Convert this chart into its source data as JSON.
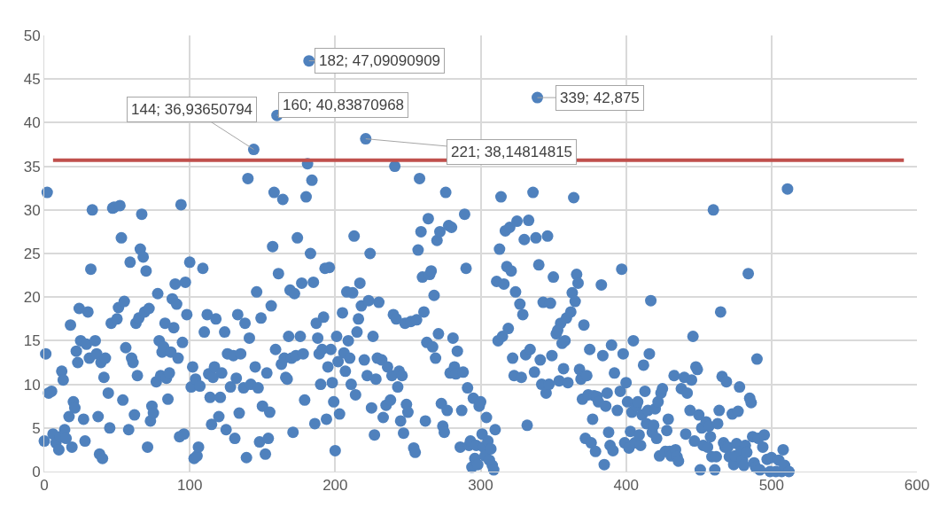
{
  "chart_data": {
    "type": "scatter",
    "x": [
      0,
      1,
      2,
      3,
      5,
      6,
      8,
      10,
      11,
      12,
      13,
      14,
      15,
      17,
      18,
      19,
      20,
      21,
      22,
      23,
      24,
      25,
      27,
      28,
      29,
      30,
      31,
      32,
      33,
      35,
      36,
      37,
      38,
      39,
      40,
      41,
      42,
      44,
      45,
      46,
      47,
      48,
      50,
      51,
      52,
      53,
      54,
      55,
      56,
      58,
      59,
      60,
      61,
      62,
      63,
      64,
      65,
      66,
      67,
      68,
      69,
      70,
      71,
      72,
      73,
      74,
      75,
      77,
      78,
      79,
      80,
      81,
      82,
      83,
      84,
      85,
      86,
      87,
      88,
      89,
      90,
      91,
      92,
      93,
      94,
      95,
      96,
      97,
      98,
      100,
      101,
      102,
      103,
      104,
      105,
      106,
      107,
      109,
      110,
      112,
      113,
      114,
      115,
      116,
      117,
      118,
      120,
      121,
      122,
      124,
      125,
      126,
      128,
      130,
      131,
      132,
      133,
      134,
      135,
      137,
      138,
      139,
      140,
      141,
      142,
      144,
      145,
      146,
      147,
      148,
      149,
      150,
      152,
      153,
      154,
      155,
      156,
      157,
      158,
      159,
      160,
      161,
      163,
      164,
      165,
      166,
      167,
      168,
      169,
      170,
      171,
      172,
      173,
      174,
      176,
      177,
      178,
      179,
      180,
      181,
      182,
      183,
      184,
      185,
      186,
      187,
      188,
      189,
      190,
      191,
      192,
      193,
      194,
      195,
      196,
      197,
      198,
      199,
      200,
      201,
      202,
      203,
      205,
      206,
      207,
      208,
      209,
      210,
      211,
      212,
      213,
      214,
      215,
      216,
      217,
      218,
      220,
      221,
      222,
      223,
      224,
      225,
      226,
      227,
      228,
      229,
      230,
      232,
      233,
      235,
      236,
      238,
      239,
      240,
      241,
      242,
      243,
      244,
      245,
      246,
      247,
      248,
      249,
      250,
      252,
      254,
      255,
      256,
      257,
      258,
      259,
      260,
      261,
      262,
      263,
      264,
      265,
      266,
      267,
      268,
      269,
      270,
      271,
      272,
      273,
      274,
      275,
      276,
      277,
      278,
      279,
      280,
      281,
      282,
      283,
      284,
      286,
      287,
      288,
      289,
      290,
      291,
      292,
      293,
      294,
      295,
      296,
      297,
      298,
      299,
      300,
      301,
      302,
      303,
      304,
      305,
      306,
      307,
      308,
      309,
      310,
      311,
      312,
      313,
      314,
      315,
      316,
      317,
      318,
      319,
      320,
      321,
      322,
      323,
      324,
      325,
      327,
      328,
      329,
      330,
      331,
      332,
      333,
      334,
      336,
      337,
      338,
      339,
      340,
      341,
      342,
      343,
      345,
      346,
      347,
      348,
      349,
      350,
      352,
      353,
      354,
      355,
      356,
      357,
      358,
      359,
      360,
      362,
      363,
      364,
      365,
      366,
      367,
      368,
      369,
      370,
      371,
      372,
      373,
      374,
      375,
      376,
      377,
      378,
      379,
      380,
      381,
      383,
      384,
      385,
      386,
      387,
      388,
      389,
      390,
      391,
      392,
      394,
      396,
      397,
      398,
      399,
      400,
      401,
      402,
      403,
      404,
      405,
      406,
      407,
      408,
      409,
      410,
      411,
      412,
      413,
      414,
      415,
      416,
      417,
      418,
      419,
      420,
      421,
      422,
      423,
      424,
      425,
      427,
      428,
      429,
      430,
      431,
      433,
      434,
      435,
      436,
      438,
      440,
      441,
      442,
      444,
      445,
      446,
      447,
      448,
      449,
      450,
      451,
      452,
      453,
      455,
      456,
      457,
      458,
      459,
      460,
      461,
      462,
      463,
      464,
      465,
      466,
      467,
      468,
      469,
      470,
      471,
      473,
      474,
      475,
      476,
      477,
      478,
      479,
      480,
      481,
      482,
      483,
      484,
      485,
      486,
      487,
      488,
      489,
      490,
      491,
      492,
      494,
      495,
      497,
      499,
      500,
      503,
      505,
      507,
      508,
      509,
      511,
      512
    ],
    "values": [
      3.5,
      13.5,
      32,
      9,
      9.2,
      4.3,
      3.3,
      2.5,
      4,
      11.5,
      10.5,
      4.8,
      3.8,
      6.3,
      16.8,
      2.8,
      8,
      7.3,
      13.8,
      12.5,
      18.7,
      15,
      6,
      3.5,
      14.6,
      18.3,
      13,
      23.2,
      30,
      15,
      13.5,
      6.3,
      2,
      12.5,
      1.5,
      10.8,
      13,
      9,
      5,
      17,
      30.2,
      30.3,
      17.5,
      18.8,
      30.5,
      26.8,
      8.2,
      19.5,
      14.2,
      4.8,
      24,
      13,
      12.5,
      6.5,
      17,
      11,
      17.6,
      25.5,
      29.5,
      24.6,
      18.3,
      23,
      2.8,
      18.7,
      5.8,
      7.5,
      6.7,
      10.3,
      20.4,
      15,
      11,
      13.7,
      14.3,
      17,
      10.7,
      8.3,
      11.3,
      13.7,
      19.8,
      16.5,
      21.5,
      19.2,
      13,
      4,
      30.6,
      14.8,
      4.3,
      21.7,
      18,
      24,
      9.7,
      12,
      1.5,
      10.6,
      1.8,
      2.8,
      9.8,
      23.3,
      16,
      18,
      11.2,
      8.5,
      5.4,
      10.8,
      12,
      17.5,
      6.3,
      8.5,
      11.3,
      16,
      4.8,
      13.5,
      9.7,
      13.3,
      3.8,
      10.7,
      18,
      6.7,
      13.5,
      9.6,
      17,
      1.6,
      33.6,
      15.3,
      10,
      36.93650794,
      12,
      20.6,
      9.6,
      3.4,
      17.6,
      7.5,
      2,
      11.3,
      3.8,
      6.8,
      19,
      25.8,
      32,
      14,
      40.83870968,
      22.7,
      12.3,
      31.2,
      13,
      10.8,
      10.6,
      15.5,
      20.8,
      13,
      4.5,
      20.4,
      13.3,
      26.8,
      15.5,
      21.6,
      13.5,
      8.2,
      31.5,
      35.3,
      47.09090909,
      25,
      33.4,
      21.7,
      5.5,
      17,
      15.3,
      13.5,
      10,
      14,
      17.7,
      23.3,
      6,
      12,
      23.4,
      14,
      10.2,
      8,
      2.4,
      15.5,
      12.6,
      6.6,
      18.2,
      13.6,
      11.5,
      20.6,
      15,
      13,
      10,
      20.5,
      27,
      8.8,
      16,
      17.5,
      21.6,
      19,
      12.8,
      38.14814815,
      11,
      19.6,
      25,
      7.3,
      15.5,
      4.2,
      10.6,
      13,
      19.4,
      12.8,
      6.2,
      7.6,
      12,
      8.2,
      11,
      18,
      35,
      17.5,
      9.7,
      11.5,
      5.8,
      11,
      4.4,
      17,
      7.7,
      6.8,
      17.2,
      2.7,
      2.2,
      17.4,
      25.4,
      33.6,
      27.5,
      22.3,
      18.3,
      5.8,
      14.8,
      29,
      22.6,
      23,
      14.3,
      20.2,
      13,
      26.5,
      15.8,
      27.5,
      7.8,
      5.2,
      4.5,
      32,
      7,
      28.2,
      11.3,
      28,
      15.3,
      12,
      11.2,
      13.8,
      2.8,
      7,
      11.4,
      29.5,
      23.3,
      9.6,
      3,
      3.5,
      0.5,
      8.4,
      1.5,
      3,
      0.8,
      7.5,
      8,
      4.3,
      2.8,
      1.8,
      6.2,
      3.5,
      1.3,
      2.6,
      0.7,
      0.2,
      4.8,
      21.8,
      15,
      25.5,
      31.5,
      15.5,
      21.5,
      27.6,
      23.5,
      16.4,
      28,
      23,
      13,
      11,
      20.6,
      28.7,
      19.2,
      10.8,
      18,
      26.6,
      13.4,
      5.3,
      28.8,
      14,
      32,
      11.4,
      26.8,
      42.875,
      23.7,
      12.8,
      10,
      19.4,
      9,
      27,
      10,
      19.3,
      13.3,
      22.3,
      15.8,
      16.2,
      10.4,
      17,
      14.7,
      11.8,
      15,
      17.6,
      10.2,
      18.3,
      20.5,
      31.4,
      19.5,
      22.6,
      21.6,
      11.7,
      10.6,
      8.3,
      16.8,
      3.8,
      11,
      8.8,
      14,
      3.3,
      6,
      8.7,
      2.3,
      8.6,
      8,
      21.4,
      13.3,
      0.8,
      7.5,
      9,
      4.5,
      3,
      14.5,
      2.4,
      11.3,
      7,
      9.2,
      23.2,
      13.5,
      3.3,
      10.2,
      8,
      2.7,
      4.6,
      6.8,
      15,
      3.3,
      7.5,
      8,
      4.2,
      3,
      6.5,
      12.2,
      9.2,
      5.5,
      7,
      13.5,
      19.6,
      4.5,
      5.3,
      7.2,
      3.8,
      8,
      1.8,
      9,
      9.5,
      2.3,
      4.7,
      6,
      2.3,
      1.8,
      11,
      2.5,
      1.7,
      1.2,
      9.5,
      10.8,
      4.3,
      9,
      7,
      10.5,
      15.5,
      3.5,
      12,
      11.7,
      6.5,
      0.2,
      5,
      3,
      5.7,
      2.8,
      5.2,
      4,
      1.7,
      30,
      0.2,
      1.7,
      5.5,
      7,
      18.3,
      10.9,
      3.3,
      2.8,
      10.3,
      2.8,
      1.7,
      6.6,
      0.8,
      1.8,
      3.2,
      6.9,
      9.7,
      2.3,
      1.3,
      0.7,
      3,
      2.2,
      22.7,
      8.4,
      7.9,
      4,
      1,
      0.5,
      12.9,
      3.8,
      0.2,
      2.8,
      4.2,
      1.4,
      0,
      1.6,
      0,
      1.3,
      0,
      2.5,
      0.7,
      32.4,
      0
    ],
    "color": "#4f81bd",
    "marker": "circle",
    "xlim": [
      0,
      600
    ],
    "xticks": [
      0,
      100,
      200,
      300,
      400,
      500,
      600
    ],
    "ylim": [
      0,
      50
    ],
    "yticks": [
      0,
      5,
      10,
      15,
      20,
      25,
      30,
      35,
      40,
      45,
      50
    ],
    "grid": true,
    "ref_lines": [
      {
        "axis": "y",
        "value": 35.7,
        "color": "#c0504d"
      }
    ],
    "annotations": [
      {
        "text": "182; 47,09090909",
        "x": 182,
        "y": 47.09090909
      },
      {
        "text": "144; 36,93650794",
        "x": 144,
        "y": 36.93650794
      },
      {
        "text": "160; 40,83870968",
        "x": 160,
        "y": 40.83870968
      },
      {
        "text": "339; 42,875",
        "x": 339,
        "y": 42.875
      },
      {
        "text": "221; 38,14814815",
        "x": 221,
        "y": 38.14814815
      }
    ]
  }
}
